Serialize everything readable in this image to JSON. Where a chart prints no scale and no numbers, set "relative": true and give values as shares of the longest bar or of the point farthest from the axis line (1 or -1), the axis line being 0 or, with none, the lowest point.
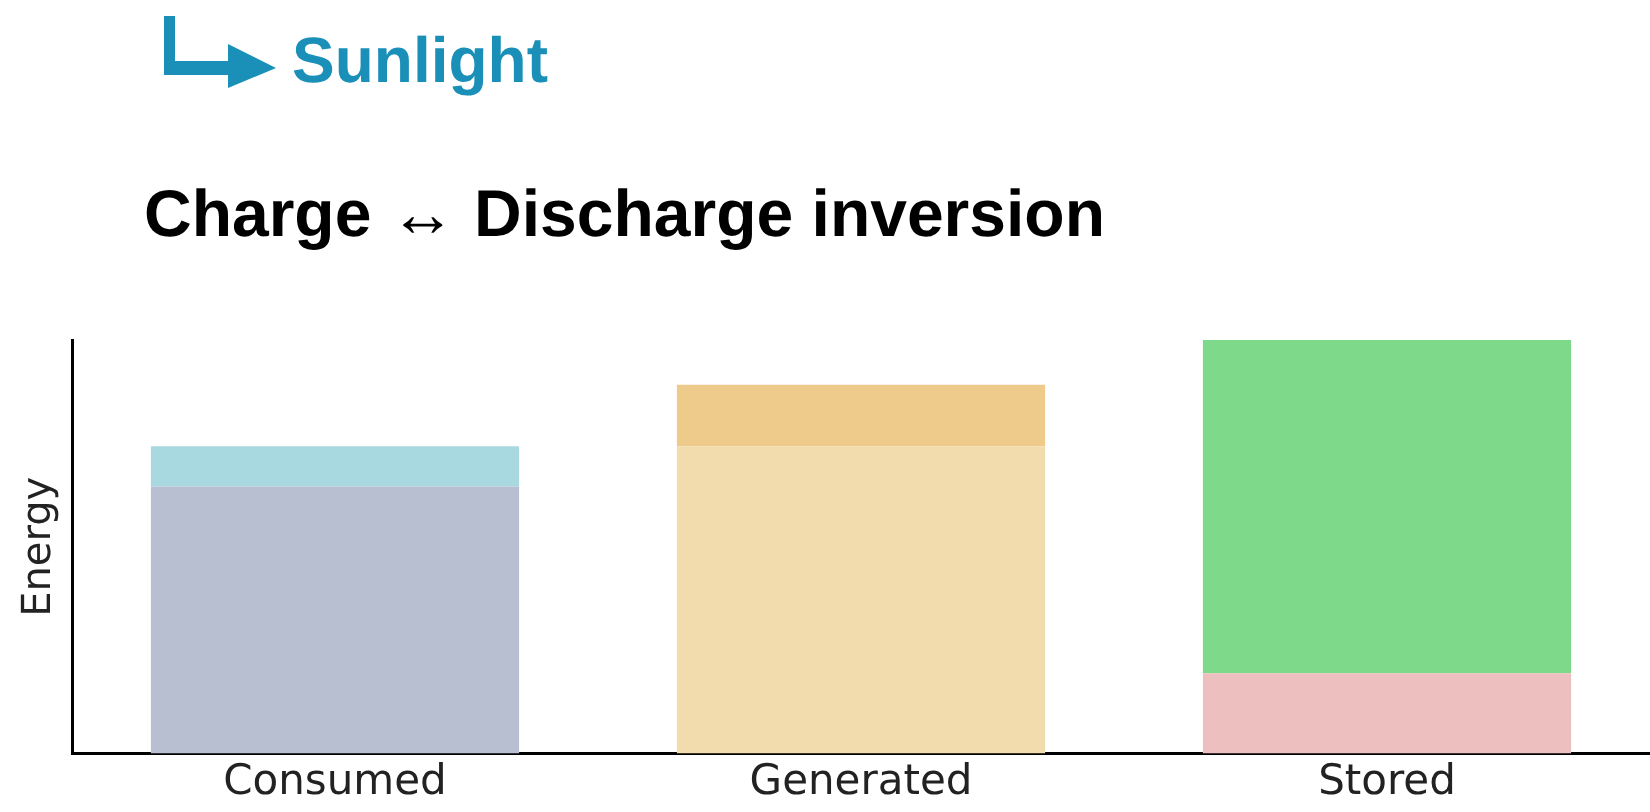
{
  "chart_data": {
    "type": "bar",
    "stacked": true,
    "relative": true,
    "ylabel": "Energy",
    "categories": [
      "Consumed",
      "Generated",
      "Stored"
    ],
    "series": [
      {
        "colors": [
          "#b8bfd0",
          "#f2dcae",
          "#eebfbf"
        ],
        "values": [
          0.646,
          0.743,
          0.194
        ]
      },
      {
        "colors": [
          "#a8d8e0",
          "#eecb8a",
          "#7fd98a"
        ],
        "values": [
          0.097,
          0.149,
          0.806
        ]
      }
    ],
    "annotations": [
      "Sunlight",
      "Charge ↔ Discharge inversion"
    ],
    "legend": false,
    "grid": false
  }
}
